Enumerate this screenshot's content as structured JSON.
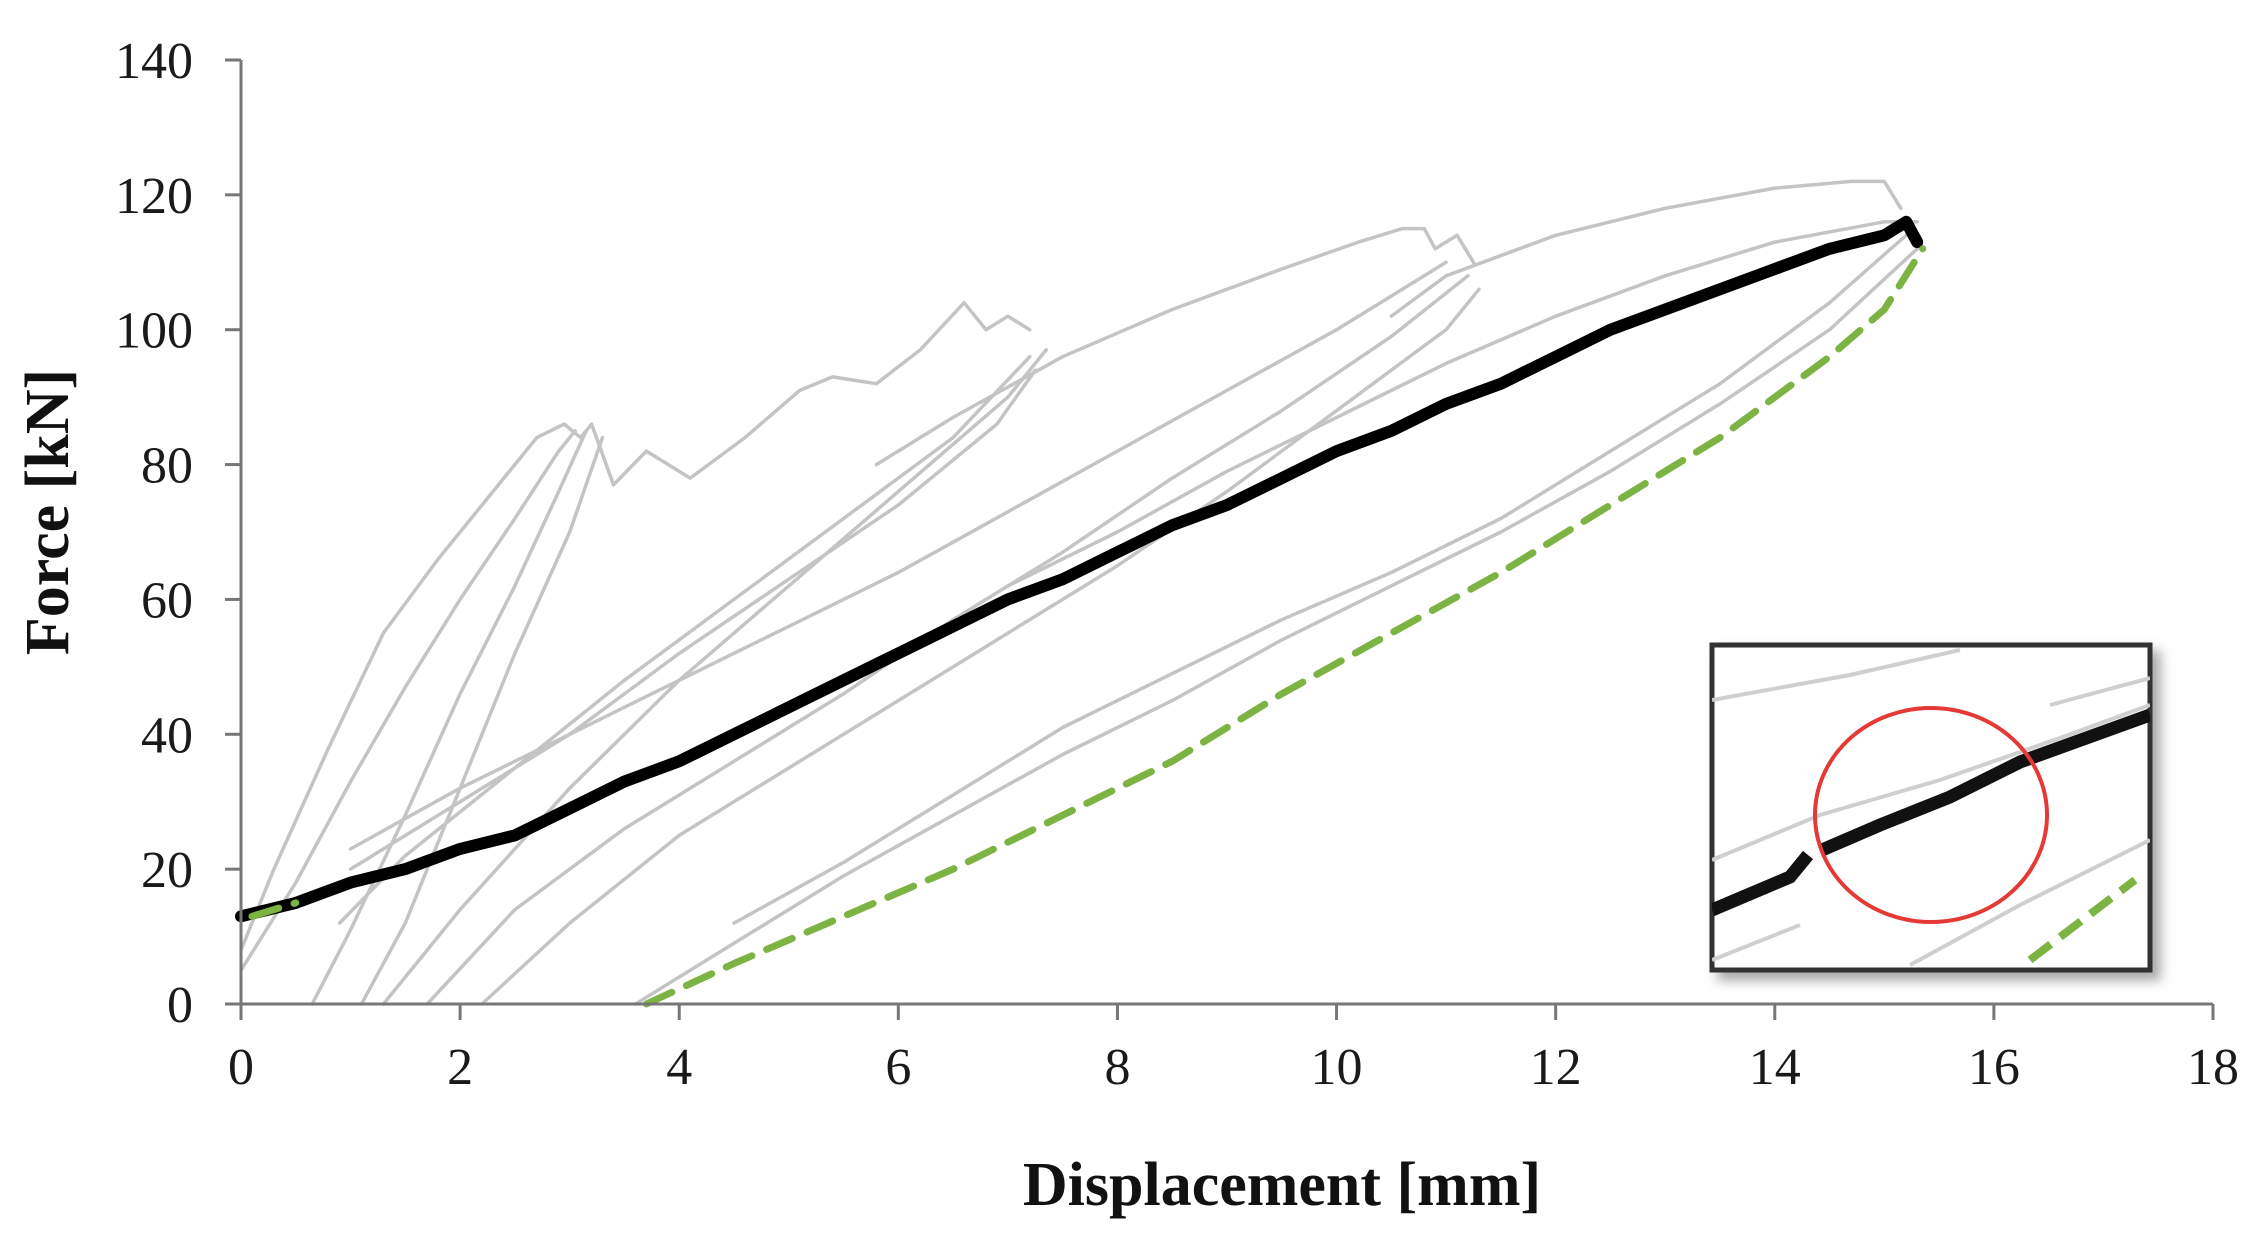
{
  "chart_data": {
    "type": "line",
    "title": "",
    "xlabel": "Displacement [mm]",
    "ylabel": "Force [kN]",
    "xlim": [
      0,
      18
    ],
    "ylim": [
      0,
      140
    ],
    "xticks": [
      "0",
      "2",
      "4",
      "6",
      "8",
      "10",
      "12",
      "14",
      "16",
      "18"
    ],
    "yticks": [
      "0",
      "20",
      "40",
      "60",
      "80",
      "100",
      "120",
      "140"
    ],
    "grid": false,
    "legend": "none",
    "colors": {
      "test_curves": "#c4c4c4",
      "envelope": "#000000",
      "unloading_fit": "#7cb342",
      "inset_circle": "#e53935",
      "inset_border": "#333333"
    },
    "series": [
      {
        "style": "light-gray",
        "x": [
          0.0,
          0.3,
          0.8,
          1.3,
          1.8,
          2.3,
          2.7,
          2.95,
          3.1,
          3.2,
          3.4,
          3.7,
          4.1,
          4.6,
          5.1,
          5.4,
          5.8,
          6.2,
          6.6,
          6.8,
          7.0,
          7.2
        ],
        "y": [
          8,
          20,
          38,
          55,
          66,
          76,
          84,
          86,
          84,
          86,
          77,
          82,
          78,
          84,
          91,
          93,
          92,
          97,
          104,
          100,
          102,
          100
        ]
      },
      {
        "style": "light-gray",
        "x": [
          0.0,
          0.5,
          1.0,
          1.5,
          2.0,
          2.5,
          2.9,
          3.05
        ],
        "y": [
          5,
          18,
          33,
          47,
          60,
          72,
          82,
          85
        ]
      },
      {
        "style": "light-gray",
        "x": [
          0.65,
          1.0,
          1.5,
          2.0,
          2.5,
          2.9,
          3.15
        ],
        "y": [
          0,
          11,
          28,
          46,
          62,
          76,
          85
        ]
      },
      {
        "style": "light-gray",
        "x": [
          1.1,
          1.5,
          2.0,
          2.5,
          3.0,
          3.3
        ],
        "y": [
          0,
          12,
          32,
          52,
          70,
          84
        ]
      },
      {
        "style": "light-gray",
        "x": [
          0.9,
          1.5,
          2.5,
          3.5,
          4.5,
          5.5,
          6.5,
          7.2
        ],
        "y": [
          12,
          22,
          35,
          48,
          60,
          72,
          84,
          96
        ]
      },
      {
        "style": "light-gray",
        "x": [
          1.3,
          2.0,
          3.0,
          4.0,
          5.0,
          6.0,
          7.0,
          7.35
        ],
        "y": [
          0,
          14,
          32,
          48,
          62,
          76,
          90,
          97
        ]
      },
      {
        "style": "light-gray",
        "x": [
          1.0,
          2.0,
          3.0,
          4.0,
          5.0,
          6.0,
          6.9,
          7.25
        ],
        "y": [
          20,
          30,
          40,
          52,
          63,
          74,
          86,
          94
        ]
      },
      {
        "style": "light-gray",
        "x": [
          5.8,
          6.5,
          7.5,
          8.5,
          9.5,
          10.2,
          10.6,
          10.8,
          10.9,
          11.1,
          11.25
        ],
        "y": [
          80,
          87,
          96,
          103,
          109,
          113,
          115,
          115,
          112,
          114,
          110
        ]
      },
      {
        "style": "light-gray",
        "x": [
          1.7,
          2.5,
          3.5,
          4.5,
          5.5,
          6.5,
          7.5,
          8.5,
          9.5,
          10.5,
          11.2
        ],
        "y": [
          0,
          14,
          26,
          36,
          46,
          57,
          67,
          78,
          88,
          99,
          108
        ]
      },
      {
        "style": "light-gray",
        "x": [
          1.0,
          2.0,
          3.0,
          4.0,
          5.0,
          6.0,
          7.0,
          8.0,
          9.0,
          10.0,
          11.0
        ],
        "y": [
          23,
          32,
          40,
          48,
          56,
          64,
          73,
          82,
          91,
          100,
          110
        ]
      },
      {
        "style": "light-gray",
        "x": [
          2.2,
          3.0,
          4.0,
          5.0,
          6.0,
          7.0,
          8.0,
          9.0,
          10.0,
          11.0,
          11.3
        ],
        "y": [
          0,
          12,
          25,
          35,
          45,
          55,
          65,
          76,
          88,
          100,
          106
        ]
      },
      {
        "style": "light-gray",
        "x": [
          10.5,
          11.0,
          12.0,
          13.0,
          14.0,
          14.7,
          15.0,
          15.15
        ],
        "y": [
          102,
          108,
          114,
          118,
          121,
          122,
          122,
          118
        ]
      },
      {
        "style": "light-gray",
        "x": [
          7.0,
          8.0,
          9.0,
          10.0,
          11.0,
          12.0,
          13.0,
          14.0,
          15.0,
          15.3
        ],
        "y": [
          62,
          70,
          79,
          87,
          95,
          102,
          108,
          113,
          116,
          116
        ]
      },
      {
        "style": "light-gray",
        "x": [
          3.6,
          4.5,
          5.5,
          6.5,
          7.5,
          8.5,
          9.5,
          10.5,
          11.5,
          12.5,
          13.5,
          14.5,
          15.3
        ],
        "y": [
          0,
          9,
          19,
          28,
          37,
          45,
          54,
          62,
          70,
          79,
          89,
          100,
          112
        ]
      },
      {
        "style": "light-gray",
        "x": [
          4.5,
          5.5,
          6.5,
          7.5,
          8.5,
          9.5,
          10.5,
          11.5,
          12.5,
          13.5,
          14.5,
          15.2
        ],
        "y": [
          12,
          21,
          31,
          41,
          49,
          57,
          64,
          72,
          82,
          92,
          104,
          114
        ]
      },
      {
        "style": "bold-black",
        "x": [
          0.0,
          0.5,
          1.0,
          1.5,
          2.0,
          2.5,
          3.0,
          3.5,
          4.0,
          4.5,
          5.0,
          5.5,
          6.0,
          6.5,
          7.0,
          7.5,
          8.0,
          8.5,
          9.0,
          9.5,
          10.0,
          10.5,
          11.0,
          11.5,
          12.0,
          12.5,
          13.0,
          13.5,
          14.0,
          14.5,
          15.0,
          15.2,
          15.3
        ],
        "y": [
          13,
          15,
          18,
          20,
          23,
          25,
          29,
          33,
          36,
          40,
          44,
          48,
          52,
          56,
          60,
          63,
          67,
          71,
          74,
          78,
          82,
          85,
          89,
          92,
          96,
          100,
          103,
          106,
          109,
          112,
          114,
          116,
          113
        ]
      },
      {
        "style": "green-dashed",
        "x": [
          3.7,
          4.5,
          5.5,
          6.5,
          7.5,
          8.5,
          9.5,
          10.5,
          11.5,
          12.5,
          13.5,
          14.5,
          15.0,
          15.35
        ],
        "y": [
          0,
          6,
          13,
          20,
          28,
          36,
          46,
          55,
          64,
          74,
          84,
          96,
          103,
          112
        ]
      },
      {
        "style": "green-dashed",
        "x": [
          0.1,
          0.5
        ],
        "y": [
          13,
          15
        ]
      }
    ]
  }
}
